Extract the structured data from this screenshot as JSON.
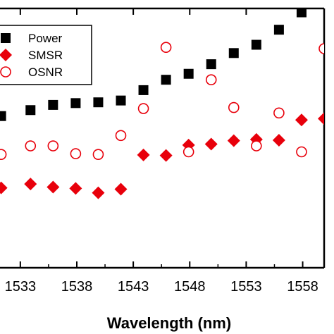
{
  "chart_data": {
    "type": "scatter",
    "title": "",
    "xlabel": "Wavelength (nm)",
    "ylabel": "",
    "xlim": [
      1531.2,
      1559.9
    ],
    "ylim": [
      0,
      1
    ],
    "x_ticks": [
      {
        "value": 1533,
        "label": "1533"
      },
      {
        "value": 1538,
        "label": "1538"
      },
      {
        "value": 1543,
        "label": "1543"
      },
      {
        "value": 1548,
        "label": "1548"
      },
      {
        "value": 1553,
        "label": "1553"
      },
      {
        "value": 1558,
        "label": "1558"
      }
    ],
    "legend_position": "top-left",
    "series": [
      {
        "name": "Power",
        "marker": "square",
        "color": "#000000",
        "filled": true,
        "points": [
          [
            1531.3,
            0.585
          ],
          [
            1533.9,
            0.608
          ],
          [
            1535.9,
            0.628
          ],
          [
            1537.9,
            0.635
          ],
          [
            1539.9,
            0.638
          ],
          [
            1541.9,
            0.645
          ],
          [
            1543.9,
            0.685
          ],
          [
            1545.9,
            0.725
          ],
          [
            1547.9,
            0.748
          ],
          [
            1549.9,
            0.785
          ],
          [
            1551.9,
            0.828
          ],
          [
            1553.9,
            0.86
          ],
          [
            1555.9,
            0.918
          ],
          [
            1557.9,
            0.985
          ],
          [
            1559.9,
            1.03
          ]
        ]
      },
      {
        "name": "SMSR",
        "marker": "diamond",
        "color": "#e8000b",
        "filled": true,
        "points": [
          [
            1531.3,
            0.308
          ],
          [
            1533.9,
            0.323
          ],
          [
            1535.9,
            0.311
          ],
          [
            1537.9,
            0.306
          ],
          [
            1539.9,
            0.289
          ],
          [
            1541.9,
            0.303
          ],
          [
            1543.9,
            0.435
          ],
          [
            1545.9,
            0.433
          ],
          [
            1547.9,
            0.473
          ],
          [
            1549.9,
            0.477
          ],
          [
            1551.9,
            0.49
          ],
          [
            1553.9,
            0.495
          ],
          [
            1555.9,
            0.492
          ],
          [
            1557.9,
            0.57
          ],
          [
            1559.9,
            0.575
          ]
        ]
      },
      {
        "name": "OSNR",
        "marker": "circle",
        "color": "#e8000b",
        "filled": false,
        "points": [
          [
            1531.3,
            0.437
          ],
          [
            1533.9,
            0.47
          ],
          [
            1535.9,
            0.47
          ],
          [
            1537.9,
            0.44
          ],
          [
            1539.9,
            0.437
          ],
          [
            1541.9,
            0.51
          ],
          [
            1543.9,
            0.614
          ],
          [
            1545.9,
            0.85
          ],
          [
            1547.9,
            0.447
          ],
          [
            1549.9,
            0.725
          ],
          [
            1551.9,
            0.618
          ],
          [
            1553.9,
            0.47
          ],
          [
            1555.9,
            0.597
          ],
          [
            1557.9,
            0.447
          ],
          [
            1559.9,
            0.845
          ]
        ]
      }
    ]
  }
}
